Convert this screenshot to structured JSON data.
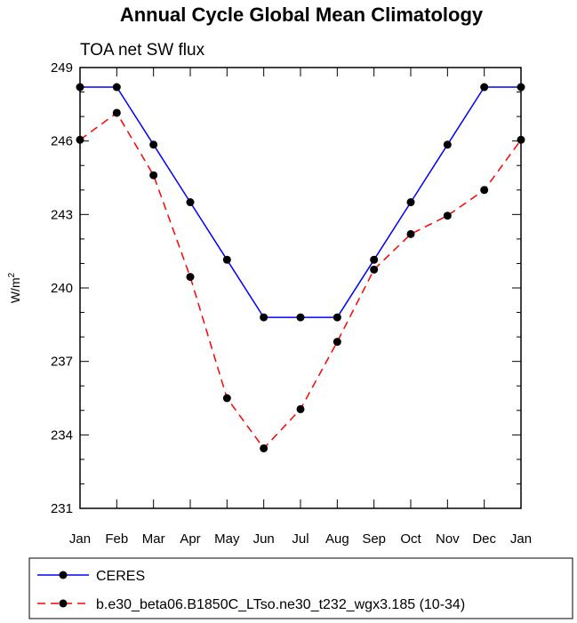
{
  "chart_data": {
    "type": "line",
    "title": "Annual Cycle Global Mean Climatology",
    "subtitle": "TOA net SW flux",
    "xlabel": "",
    "ylabel": "W/m",
    "ylabel_superscript": "2",
    "categories": [
      "Jan",
      "Feb",
      "Mar",
      "Apr",
      "May",
      "Jun",
      "Jul",
      "Aug",
      "Sep",
      "Oct",
      "Nov",
      "Dec",
      "Jan"
    ],
    "ylim": [
      231,
      249
    ],
    "yticks": [
      231,
      234,
      237,
      240,
      243,
      246,
      249
    ],
    "grid": false,
    "legend_position": "bottom",
    "series": [
      {
        "name": "CERES",
        "color": "#0000ff",
        "style": "solid",
        "values": [
          248.2,
          248.2,
          245.85,
          243.5,
          241.15,
          238.8,
          238.8,
          238.8,
          241.15,
          243.5,
          245.85,
          248.2,
          248.2
        ]
      },
      {
        "name": "b.e30_beta06.B1850C_LTso.ne30_t232_wgx3.185 (10-34)",
        "color": "#ff0000",
        "style": "dashed",
        "values": [
          246.05,
          247.15,
          244.6,
          240.45,
          235.5,
          233.45,
          235.05,
          237.8,
          240.75,
          242.2,
          242.95,
          244.0,
          246.05
        ]
      }
    ]
  }
}
